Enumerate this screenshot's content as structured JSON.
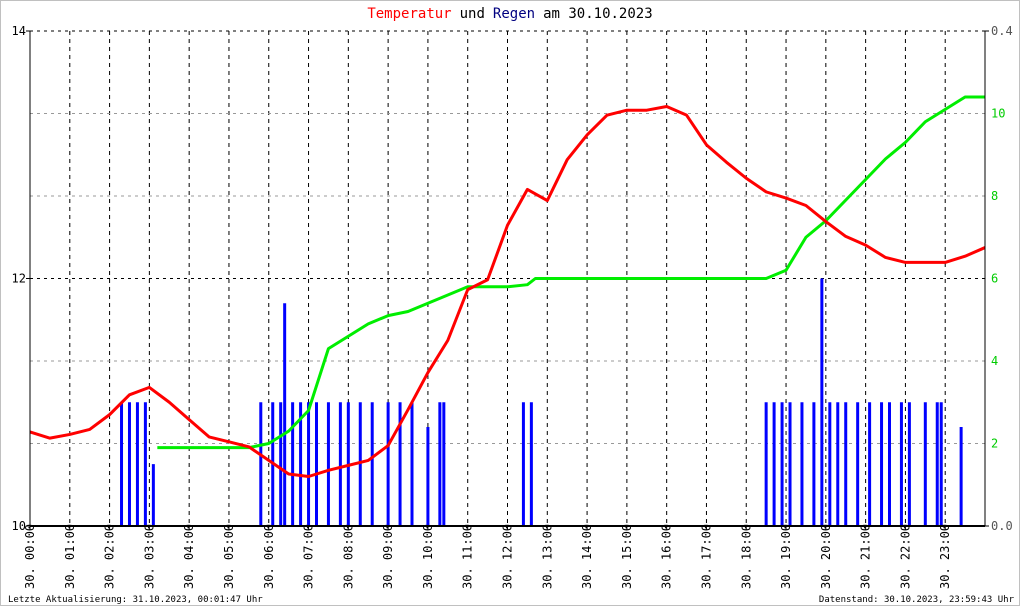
{
  "chart_data": {
    "type": "line",
    "title": [
      {
        "text": "Temperatur",
        "color": "#ff0000"
      },
      {
        "text": "und",
        "color": "#000000"
      },
      {
        "text": "Regen",
        "color": "#000080"
      },
      {
        "text": "am 30.10.2023",
        "color": "#000000"
      }
    ],
    "update_note": "Letzte Aktualisierung: 31.10.2023, 00:01:47 Uhr",
    "data_note": "Datenstand: 30.10.2023, 23:59:43 Uhr",
    "xlim": [
      0,
      24
    ],
    "xticks": [
      {
        "value": 0,
        "label": "30. 00:00"
      },
      {
        "value": 1,
        "label": "30. 01:00"
      },
      {
        "value": 2,
        "label": "30. 02:00"
      },
      {
        "value": 3,
        "label": "30. 03:00"
      },
      {
        "value": 4,
        "label": "30. 04:00"
      },
      {
        "value": 5,
        "label": "30. 05:00"
      },
      {
        "value": 6,
        "label": "30. 06:00"
      },
      {
        "value": 7,
        "label": "30. 07:00"
      },
      {
        "value": 8,
        "label": "30. 08:00"
      },
      {
        "value": 9,
        "label": "30. 09:00"
      },
      {
        "value": 10,
        "label": "30. 10:00"
      },
      {
        "value": 11,
        "label": "30. 11:00"
      },
      {
        "value": 12,
        "label": "30. 12:00"
      },
      {
        "value": 13,
        "label": "30. 13:00"
      },
      {
        "value": 14,
        "label": "30. 14:00"
      },
      {
        "value": 15,
        "label": "30. 15:00"
      },
      {
        "value": 16,
        "label": "30. 16:00"
      },
      {
        "value": 17,
        "label": "30. 17:00"
      },
      {
        "value": 18,
        "label": "30. 18:00"
      },
      {
        "value": 19,
        "label": "30. 19:00"
      },
      {
        "value": 20,
        "label": "30. 20:00"
      },
      {
        "value": 21,
        "label": "30. 21:00"
      },
      {
        "value": 22,
        "label": "30. 22:00"
      },
      {
        "value": 23,
        "label": "30. 23:00"
      }
    ],
    "ylim": [
      10,
      14
    ],
    "yticks": [
      10,
      12,
      14
    ],
    "y2lim": [
      0,
      0.4
    ],
    "y2ticks": [
      {
        "value": 0,
        "label": "0.0"
      },
      0.4
    ],
    "y3lim": [
      0,
      12
    ],
    "y3ticks": [
      2,
      4,
      6,
      8,
      10
    ],
    "grid": true,
    "series": [
      {
        "kind": "bar",
        "axis": "y2",
        "color": "#0000ff",
        "x": [
          2.3,
          2.5,
          2.7,
          2.9,
          3.1,
          5.8,
          6.1,
          6.3,
          6.4,
          6.6,
          6.8,
          7.0,
          7.2,
          7.5,
          7.8,
          8.0,
          8.3,
          8.6,
          9.0,
          9.3,
          9.6,
          10.0,
          10.3,
          10.4,
          12.4,
          12.6,
          18.5,
          18.7,
          18.9,
          19.1,
          19.4,
          19.7,
          19.9,
          20.1,
          20.3,
          20.5,
          20.8,
          21.1,
          21.4,
          21.6,
          21.9,
          22.1,
          22.5,
          22.8,
          22.9,
          23.4
        ],
        "values": [
          0.1,
          0.1,
          0.1,
          0.1,
          0.05,
          0.1,
          0.1,
          0.1,
          0.18,
          0.1,
          0.1,
          0.1,
          0.1,
          0.1,
          0.1,
          0.1,
          0.1,
          0.1,
          0.1,
          0.1,
          0.1,
          0.08,
          0.1,
          0.1,
          0.1,
          0.1,
          0.1,
          0.1,
          0.1,
          0.1,
          0.1,
          0.1,
          0.2,
          0.1,
          0.1,
          0.1,
          0.1,
          0.1,
          0.1,
          0.1,
          0.1,
          0.1,
          0.1,
          0.1,
          0.1,
          0.08
        ]
      },
      {
        "kind": "line",
        "axis": "y3",
        "color": "#00ee00",
        "x": [
          3.2,
          5.5,
          6,
          6.5,
          7,
          7.5,
          8,
          8.5,
          9,
          9.5,
          10,
          10.5,
          11,
          12,
          12.5,
          12.7,
          18.5,
          19,
          19.5,
          20,
          20.5,
          21,
          21.5,
          22,
          22.5,
          23,
          23.5,
          24
        ],
        "values": [
          1.9,
          1.9,
          2.0,
          2.3,
          2.8,
          4.3,
          4.6,
          4.9,
          5.1,
          5.2,
          5.4,
          5.6,
          5.8,
          5.8,
          5.85,
          6.0,
          6.0,
          6.2,
          7.0,
          7.4,
          7.9,
          8.4,
          8.9,
          9.3,
          9.8,
          10.1,
          10.4,
          10.4
        ]
      },
      {
        "kind": "line",
        "axis": "y",
        "color": "#ff0000",
        "x": [
          0,
          0.5,
          1,
          1.5,
          2,
          2.5,
          3,
          3.5,
          4,
          4.5,
          5,
          5.5,
          6,
          6.5,
          7,
          7.5,
          8,
          8.5,
          9,
          9.5,
          10,
          10.5,
          11,
          11.5,
          12,
          12.5,
          13,
          13.5,
          14,
          14.5,
          15,
          15.5,
          16,
          16.5,
          17,
          17.5,
          18,
          18.5,
          19,
          19.5,
          20,
          20.5,
          21,
          21.5,
          22,
          22.5,
          23,
          23.5,
          24
        ],
        "values": [
          10.76,
          10.71,
          10.74,
          10.78,
          10.9,
          11.06,
          11.12,
          11.0,
          10.86,
          10.72,
          10.68,
          10.64,
          10.53,
          10.42,
          10.4,
          10.45,
          10.49,
          10.53,
          10.65,
          10.94,
          11.24,
          11.5,
          11.91,
          11.99,
          12.43,
          12.72,
          12.63,
          12.96,
          13.16,
          13.32,
          13.36,
          13.36,
          13.39,
          13.32,
          13.08,
          12.94,
          12.81,
          12.7,
          12.65,
          12.59,
          12.46,
          12.34,
          12.27,
          12.17,
          12.13,
          12.13,
          12.13,
          12.18,
          12.25
        ]
      }
    ]
  }
}
